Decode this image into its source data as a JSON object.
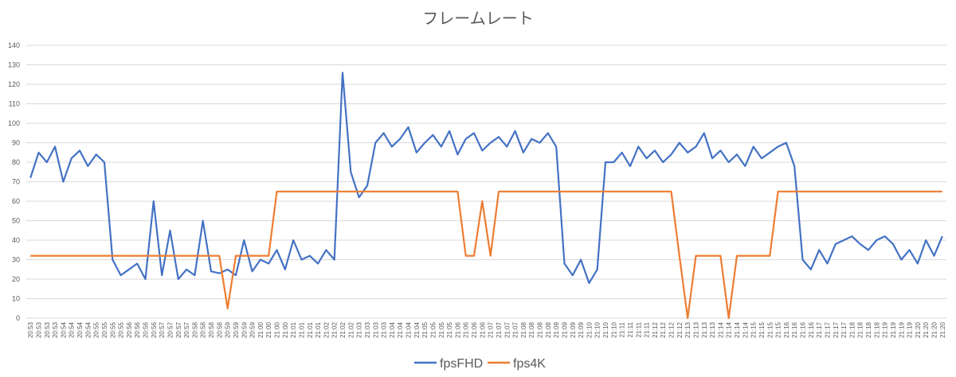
{
  "chart_data": {
    "type": "line",
    "title": "フレームレート",
    "categories": [
      "20:53",
      "20:53",
      "20:53",
      "20:53",
      "20:54",
      "20:54",
      "20:54",
      "20:54",
      "20:55",
      "20:55",
      "20:55",
      "20:55",
      "20:56",
      "20:56",
      "20:56",
      "20:56",
      "20:57",
      "20:57",
      "20:57",
      "20:57",
      "20:58",
      "20:58",
      "20:58",
      "20:58",
      "20:59",
      "20:59",
      "20:59",
      "20:59",
      "21:00",
      "21:00",
      "21:00",
      "21:00",
      "21:01",
      "21:01",
      "21:01",
      "21:01",
      "21:02",
      "21:02",
      "21:02",
      "21:02",
      "21:03",
      "21:03",
      "21:03",
      "21:03",
      "21:04",
      "21:04",
      "21:04",
      "21:04",
      "21:05",
      "21:05",
      "21:05",
      "21:05",
      "21:06",
      "21:06",
      "21:06",
      "21:06",
      "21:07",
      "21:07",
      "21:07",
      "21:07",
      "21:08",
      "21:08",
      "21:08",
      "21:08",
      "21:09",
      "21:09",
      "21:09",
      "21:09",
      "21:10",
      "21:10",
      "21:10",
      "21:10",
      "21:11",
      "21:11",
      "21:11",
      "21:11",
      "21:12",
      "21:12",
      "21:12",
      "21:12",
      "21:13",
      "21:13",
      "21:13",
      "21:13",
      "21:14",
      "21:14",
      "21:14",
      "21:14",
      "21:15",
      "21:15",
      "21:15",
      "21:15",
      "21:16",
      "21:16",
      "21:16",
      "21:16",
      "21:17",
      "21:17",
      "21:17",
      "21:17",
      "21:18",
      "21:18",
      "21:18",
      "21:18",
      "21:19",
      "21:19",
      "21:19",
      "21:19",
      "21:20",
      "21:20",
      "21:20",
      "21:20"
    ],
    "series": [
      {
        "name": "fpsFHD",
        "color": "#4472c4",
        "values": [
          72,
          85,
          80,
          88,
          70,
          82,
          86,
          78,
          84,
          80,
          30,
          22,
          25,
          28,
          20,
          60,
          22,
          45,
          20,
          25,
          22,
          50,
          24,
          23,
          25,
          22,
          40,
          24,
          30,
          28,
          35,
          25,
          40,
          30,
          32,
          28,
          35,
          30,
          126,
          75,
          62,
          68,
          90,
          95,
          88,
          92,
          98,
          85,
          90,
          94,
          88,
          96,
          84,
          92,
          95,
          86,
          90,
          93,
          88,
          96,
          85,
          92,
          90,
          95,
          88,
          28,
          22,
          30,
          18,
          25,
          80,
          80,
          85,
          78,
          88,
          82,
          86,
          80,
          84,
          90,
          85,
          88,
          95,
          82,
          86,
          80,
          84,
          78,
          88,
          82,
          85,
          88,
          90,
          78,
          30,
          25,
          35,
          28,
          38,
          40,
          42,
          38,
          35,
          40,
          42,
          38,
          30,
          35,
          28,
          40,
          32,
          42
        ]
      },
      {
        "name": "fps4K",
        "color": "#ed7d31",
        "values": [
          32,
          32,
          32,
          32,
          32,
          32,
          32,
          32,
          32,
          32,
          32,
          32,
          32,
          32,
          32,
          32,
          32,
          32,
          32,
          32,
          32,
          32,
          32,
          32,
          5,
          32,
          32,
          32,
          32,
          32,
          65,
          65,
          65,
          65,
          65,
          65,
          65,
          65,
          65,
          65,
          65,
          65,
          65,
          65,
          65,
          65,
          65,
          65,
          65,
          65,
          65,
          65,
          65,
          32,
          32,
          60,
          32,
          65,
          65,
          65,
          65,
          65,
          65,
          65,
          65,
          65,
          65,
          65,
          65,
          65,
          65,
          65,
          65,
          65,
          65,
          65,
          65,
          65,
          65,
          32,
          0,
          32,
          32,
          32,
          32,
          0,
          32,
          32,
          32,
          32,
          32,
          65,
          65,
          65,
          65,
          65,
          65,
          65,
          65,
          65,
          65,
          65,
          65,
          65,
          65,
          65,
          65,
          65,
          65,
          65,
          65,
          65
        ]
      }
    ],
    "ylim": [
      0,
      140
    ],
    "yticks": [
      0,
      10,
      20,
      30,
      40,
      50,
      60,
      70,
      80,
      90,
      100,
      110,
      120,
      130,
      140
    ],
    "grid": true,
    "legend": "bottom"
  }
}
